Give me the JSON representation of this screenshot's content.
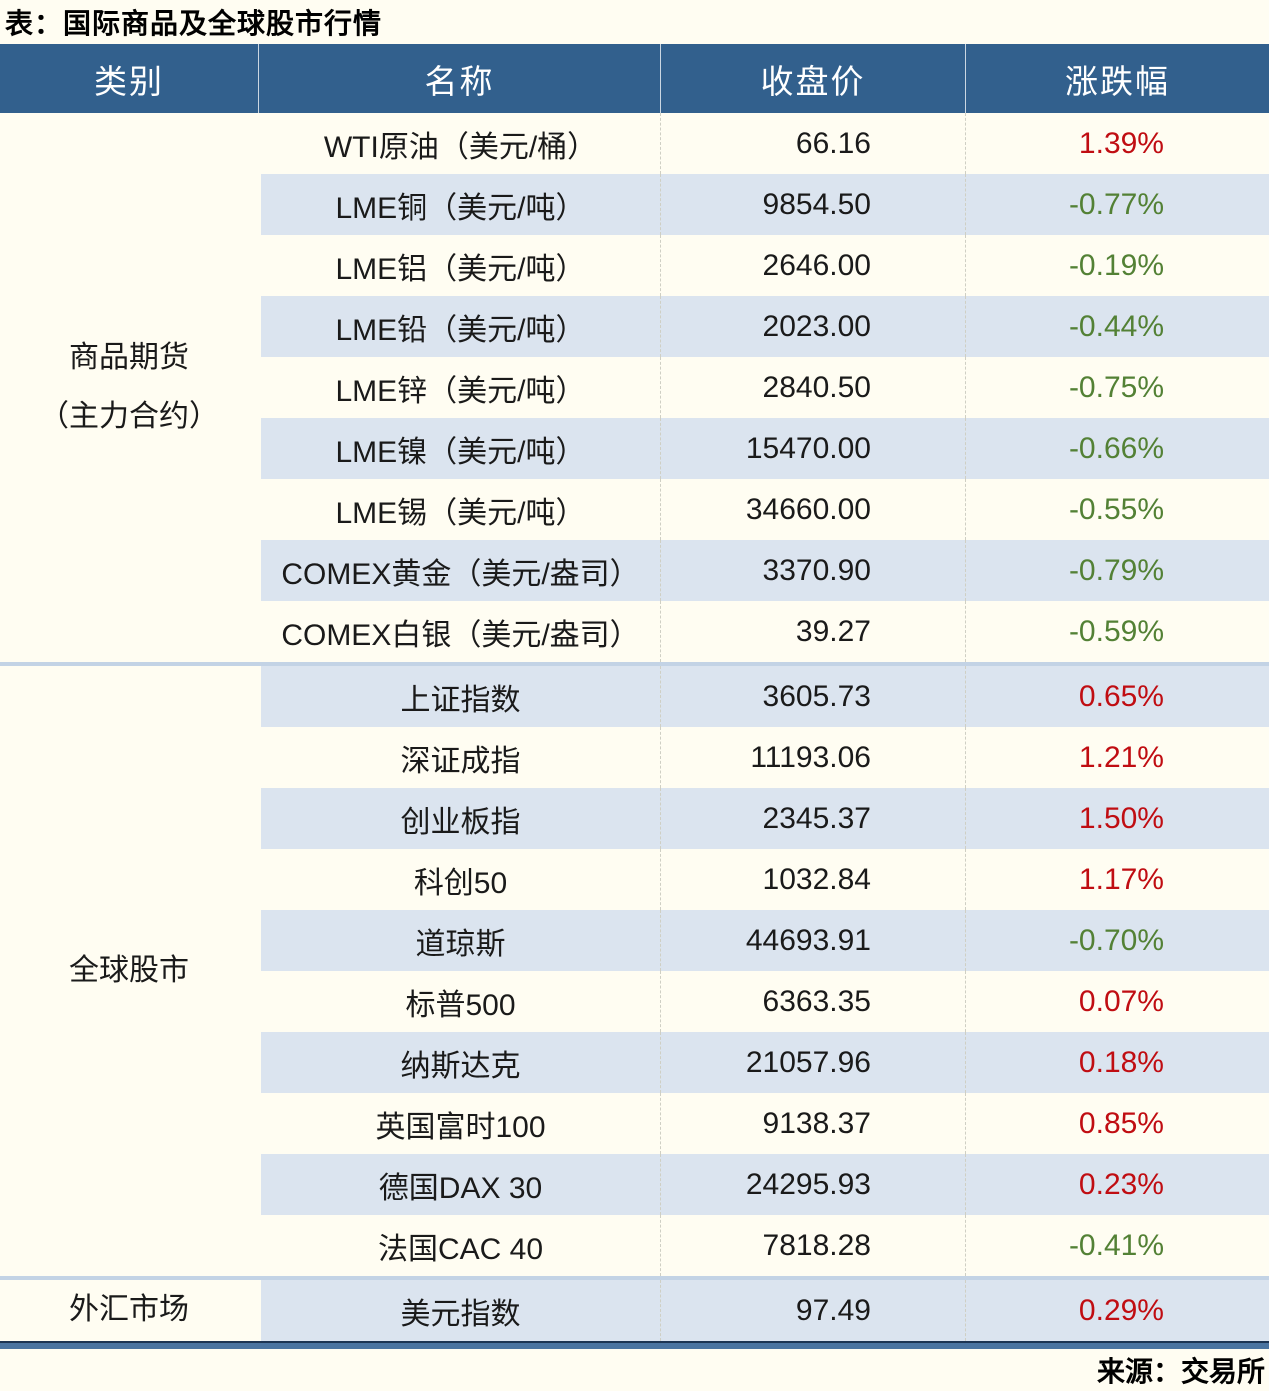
{
  "page": {
    "title": "表：国际商品及全球股市行情",
    "source": "来源：交易所"
  },
  "colors": {
    "page_bg": "#fffdf2",
    "header_bg": "#32608d",
    "header_text": "#ffffff",
    "row_alt_bg": "#dbe4ef",
    "row_bg": "#fffdf2",
    "text": "#1a1a1a",
    "up": "#c00d12",
    "down": "#538135",
    "section_divider": "#c3d3e5",
    "bottom_border": "#4a74a0",
    "bottom_border_dark": "#1c3553"
  },
  "table": {
    "headers": [
      "类别",
      "名称",
      "收盘价",
      "涨跌幅"
    ],
    "sections": [
      {
        "category": "商品期货（主力合约）",
        "category_lines": [
          "商品期货",
          "（主力合约）"
        ],
        "rows": [
          {
            "name": "WTI原油（美元/桶）",
            "close": "66.16",
            "change": "1.39%",
            "direction": "up"
          },
          {
            "name": "LME铜（美元/吨）",
            "close": "9854.50",
            "change": "-0.77%",
            "direction": "down"
          },
          {
            "name": "LME铝（美元/吨）",
            "close": "2646.00",
            "change": "-0.19%",
            "direction": "down"
          },
          {
            "name": "LME铅（美元/吨）",
            "close": "2023.00",
            "change": "-0.44%",
            "direction": "down"
          },
          {
            "name": "LME锌（美元/吨）",
            "close": "2840.50",
            "change": "-0.75%",
            "direction": "down"
          },
          {
            "name": "LME镍（美元/吨）",
            "close": "15470.00",
            "change": "-0.66%",
            "direction": "down"
          },
          {
            "name": "LME锡（美元/吨）",
            "close": "34660.00",
            "change": "-0.55%",
            "direction": "down"
          },
          {
            "name": "COMEX黄金（美元/盎司）",
            "close": "3370.90",
            "change": "-0.79%",
            "direction": "down"
          },
          {
            "name": "COMEX白银（美元/盎司）",
            "close": "39.27",
            "change": "-0.59%",
            "direction": "down"
          }
        ]
      },
      {
        "category": "全球股市",
        "category_lines": [
          "全球股市"
        ],
        "rows": [
          {
            "name": "上证指数",
            "close": "3605.73",
            "change": "0.65%",
            "direction": "up"
          },
          {
            "name": "深证成指",
            "close": "11193.06",
            "change": "1.21%",
            "direction": "up"
          },
          {
            "name": "创业板指",
            "close": "2345.37",
            "change": "1.50%",
            "direction": "up"
          },
          {
            "name": "科创50",
            "close": "1032.84",
            "change": "1.17%",
            "direction": "up"
          },
          {
            "name": "道琼斯",
            "close": "44693.91",
            "change": "-0.70%",
            "direction": "down"
          },
          {
            "name": "标普500",
            "close": "6363.35",
            "change": "0.07%",
            "direction": "up"
          },
          {
            "name": "纳斯达克",
            "close": "21057.96",
            "change": "0.18%",
            "direction": "up"
          },
          {
            "name": "英国富时100",
            "close": "9138.37",
            "change": "0.85%",
            "direction": "up"
          },
          {
            "name": "德国DAX 30",
            "close": "24295.93",
            "change": "0.23%",
            "direction": "up"
          },
          {
            "name": "法国CAC 40",
            "close": "7818.28",
            "change": "-0.41%",
            "direction": "down"
          }
        ]
      },
      {
        "category": "外汇市场",
        "category_lines": [
          "外汇市场"
        ],
        "rows": [
          {
            "name": "美元指数",
            "close": "97.49",
            "change": "0.29%",
            "direction": "up"
          }
        ]
      }
    ]
  },
  "chart_data": {
    "type": "table",
    "title": "表：国际商品及全球股市行情",
    "columns": [
      "类别",
      "名称",
      "收盘价",
      "涨跌幅"
    ],
    "rows": [
      [
        "商品期货（主力合约）",
        "WTI原油（美元/桶）",
        66.16,
        "1.39%"
      ],
      [
        "商品期货（主力合约）",
        "LME铜（美元/吨）",
        9854.5,
        "-0.77%"
      ],
      [
        "商品期货（主力合约）",
        "LME铝（美元/吨）",
        2646.0,
        "-0.19%"
      ],
      [
        "商品期货（主力合约）",
        "LME铅（美元/吨）",
        2023.0,
        "-0.44%"
      ],
      [
        "商品期货（主力合约）",
        "LME锌（美元/吨）",
        2840.5,
        "-0.75%"
      ],
      [
        "商品期货（主力合约）",
        "LME镍（美元/吨）",
        15470.0,
        "-0.66%"
      ],
      [
        "商品期货（主力合约）",
        "LME锡（美元/吨）",
        34660.0,
        "-0.55%"
      ],
      [
        "商品期货（主力合约）",
        "COMEX黄金（美元/盎司）",
        3370.9,
        "-0.79%"
      ],
      [
        "商品期货（主力合约）",
        "COMEX白银（美元/盎司）",
        39.27,
        "-0.59%"
      ],
      [
        "全球股市",
        "上证指数",
        3605.73,
        "0.65%"
      ],
      [
        "全球股市",
        "深证成指",
        11193.06,
        "1.21%"
      ],
      [
        "全球股市",
        "创业板指",
        2345.37,
        "1.50%"
      ],
      [
        "全球股市",
        "科创50",
        1032.84,
        "1.17%"
      ],
      [
        "全球股市",
        "道琼斯",
        44693.91,
        "-0.70%"
      ],
      [
        "全球股市",
        "标普500",
        6363.35,
        "0.07%"
      ],
      [
        "全球股市",
        "纳斯达克",
        21057.96,
        "0.18%"
      ],
      [
        "全球股市",
        "英国富时100",
        9138.37,
        "0.85%"
      ],
      [
        "全球股市",
        "德国DAX 30",
        24295.93,
        "0.23%"
      ],
      [
        "全球股市",
        "法国CAC 40",
        7818.28,
        "-0.41%"
      ],
      [
        "外汇市场",
        "美元指数",
        97.49,
        "0.29%"
      ]
    ],
    "source": "来源：交易所",
    "legend_note": "red = up, green = down"
  }
}
